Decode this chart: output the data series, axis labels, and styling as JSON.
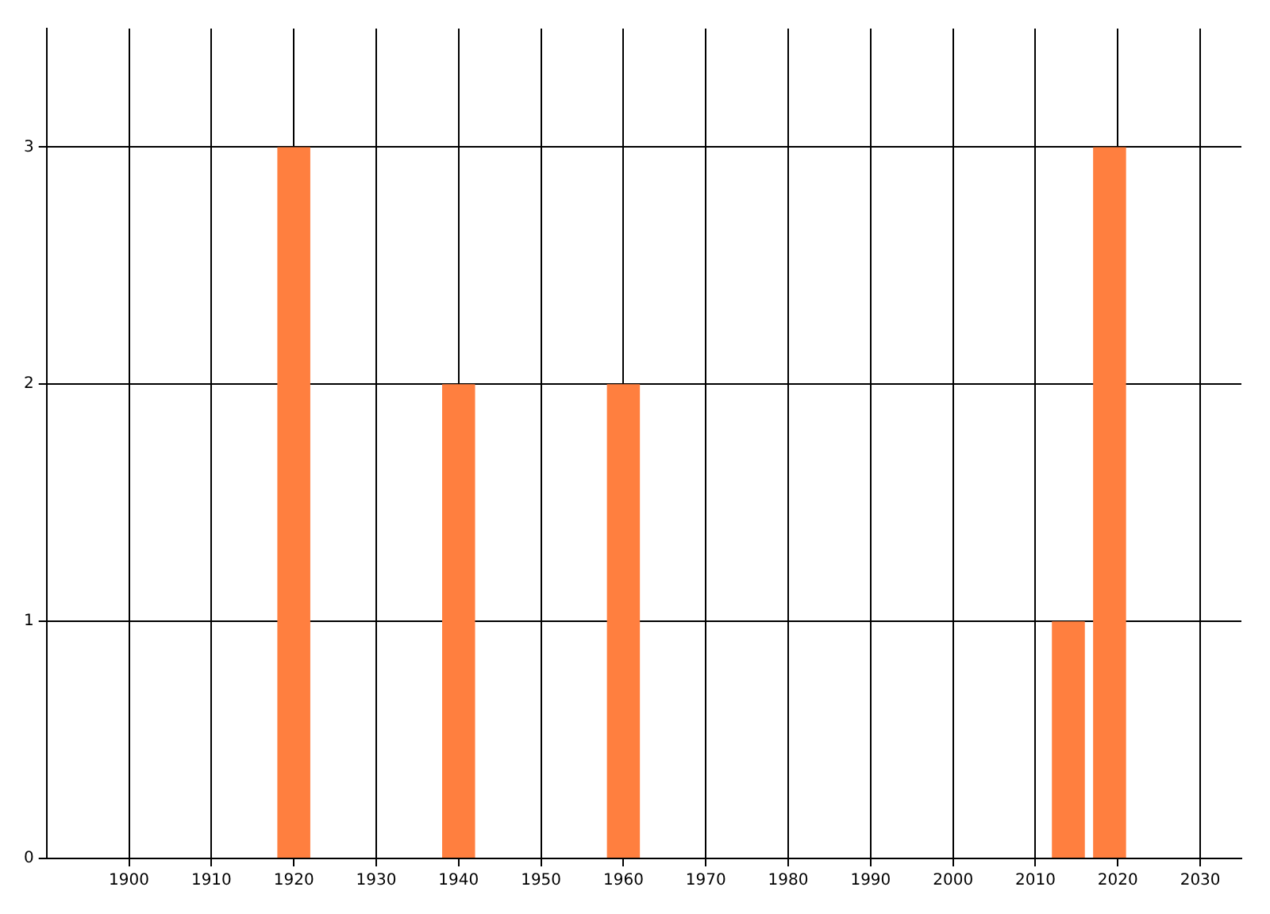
{
  "chart_data": {
    "type": "bar",
    "x": [
      1920,
      1940,
      1960,
      2014,
      2019
    ],
    "values": [
      3,
      2,
      2,
      1,
      3
    ],
    "color": "#ff7f3f",
    "xlim": [
      1890,
      2035
    ],
    "xticks": [
      1900,
      1910,
      1920,
      1930,
      1940,
      1950,
      1960,
      1970,
      1980,
      1990,
      2000,
      2010,
      2020,
      2030
    ],
    "ylim": [
      0,
      3.5
    ],
    "yticks": [
      0,
      1,
      2,
      3
    ],
    "grid": true,
    "legend": false
  }
}
